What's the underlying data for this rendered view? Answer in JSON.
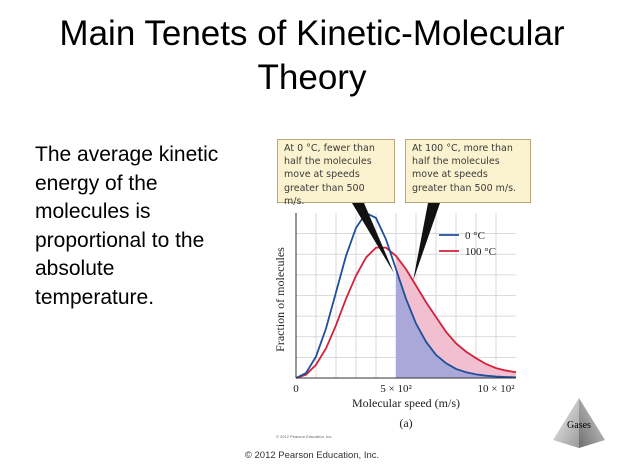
{
  "slide": {
    "title_line1": "Main Tenets of Kinetic-Molecular",
    "title_line2": "Theory",
    "body_lines": [
      "The average kinetic",
      "energy of the",
      "molecules is",
      "proportional to the",
      "absolute",
      "temperature."
    ],
    "footer": "© 2012 Pearson Education, Inc.",
    "figure_copyright": "© 2012 Pearson Education, Inc.",
    "nav_label": "Gases"
  },
  "callouts": [
    "At 0 °C, fewer than\nhalf the molecules\nmove at speeds\ngreater than 500 m/s.",
    "At 100 °C, more than\nhalf the molecules\nmove at speeds\ngreater than 500 m/s."
  ],
  "chart_data": {
    "type": "line",
    "title": "",
    "xlabel": "Molecular speed (m/s)",
    "ylabel": "Fraction of molecules",
    "caption": "(a)",
    "x_tick_labels": [
      "0",
      "5 × 10²",
      "10 × 10²"
    ],
    "xlim": [
      0,
      1100
    ],
    "ylim": [
      0,
      1
    ],
    "grid": true,
    "legend_position": "top-right",
    "shaded_region_from_x": 500,
    "series": [
      {
        "name": "0 °C",
        "color": "#1f4e9a",
        "x": [
          0,
          50,
          100,
          150,
          200,
          250,
          300,
          350,
          400,
          450,
          500,
          550,
          600,
          650,
          700,
          750,
          800,
          850,
          900,
          950,
          1000,
          1050,
          1100
        ],
        "y": [
          0.0,
          0.03,
          0.13,
          0.3,
          0.52,
          0.74,
          0.91,
          1.0,
          0.97,
          0.84,
          0.66,
          0.48,
          0.33,
          0.22,
          0.14,
          0.09,
          0.055,
          0.035,
          0.022,
          0.014,
          0.009,
          0.006,
          0.004
        ]
      },
      {
        "name": "100 °C",
        "color": "#d3223a",
        "x": [
          0,
          50,
          100,
          150,
          200,
          250,
          300,
          350,
          400,
          450,
          500,
          550,
          600,
          650,
          700,
          750,
          800,
          850,
          900,
          950,
          1000,
          1050,
          1100
        ],
        "y": [
          0.0,
          0.02,
          0.08,
          0.18,
          0.32,
          0.48,
          0.62,
          0.73,
          0.79,
          0.79,
          0.74,
          0.66,
          0.56,
          0.46,
          0.37,
          0.28,
          0.21,
          0.16,
          0.12,
          0.085,
          0.06,
          0.045,
          0.035
        ]
      }
    ],
    "colors": {
      "shade_0C": "#a9a8d8",
      "shade_100C": "#f1bfd0",
      "grid": "#cfcfcf",
      "axis": "#333333"
    }
  }
}
